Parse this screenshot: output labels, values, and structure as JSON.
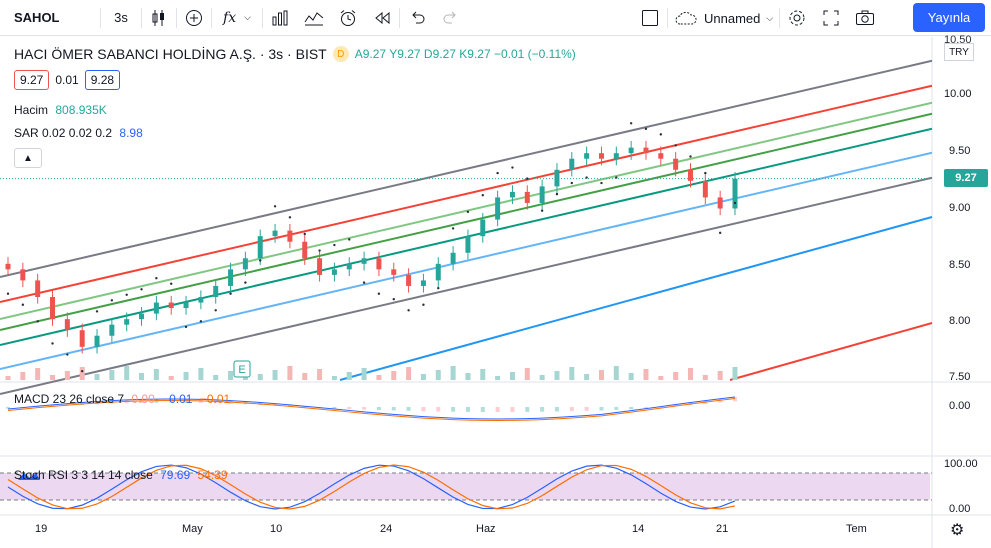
{
  "toolbar": {
    "symbol": "SAHOL",
    "interval": "3s",
    "fx_label": "fx",
    "layout_name": "Unnamed",
    "publish_label": "Yayınla"
  },
  "legend": {
    "name": "HACI ÖMER SABANCI HOLDİNG A.Ş. · 3s · BIST",
    "badge": "D",
    "ohlc": "A9.27 Y9.27 D9.27 K9.27 −0.01 (−0.11%)",
    "sell_price": "9.27",
    "spread": "0.01",
    "buy_price": "9.28"
  },
  "indicators": {
    "volume_label": "Hacim",
    "volume_value": "808.935K",
    "sar_label": "SAR 0.02 0.02 0.2",
    "sar_value": "8.98",
    "macd_label": "MACD 23 26 close 7",
    "macd_v1": "0.00",
    "macd_v2": "−0.01",
    "macd_v3": "−0.01",
    "stoch_label": "Stoch RSI 3 3 14 14 close",
    "stoch_k": "79.69",
    "stoch_d": "54.39"
  },
  "price_axis": {
    "currency": "TRY",
    "ticks": [
      "10.50",
      "10.00",
      "9.50",
      "9.00",
      "8.50",
      "8.00",
      "7.50"
    ],
    "current": "9.27",
    "macd_tick": "0.00",
    "stoch_ticks": [
      "100.00",
      "0.00"
    ]
  },
  "time_axis": {
    "ticks": [
      "19",
      "May",
      "10",
      "24",
      "Haz",
      "14",
      "21",
      "Tem"
    ]
  },
  "colors": {
    "up": "#26a69a",
    "down": "#ef5350",
    "accent": "#2962ff",
    "channel_gray": "#787b86",
    "channel_red": "#f44336",
    "channel_lightgreen": "#81c784",
    "channel_green": "#43a047",
    "channel_teal": "#089981",
    "channel_lightblue": "#64b5f6",
    "channel_blue": "#2196f3",
    "stoch_band": "#e1bee7"
  },
  "chart_data": {
    "type": "candlestick",
    "symbol": "SAHOL",
    "exchange": "BIST",
    "ylim": [
      7.45,
      10.55
    ],
    "close_series": [
      8.45,
      8.35,
      8.2,
      8.0,
      7.9,
      7.75,
      7.85,
      7.95,
      8.0,
      8.05,
      8.15,
      8.1,
      8.15,
      8.2,
      8.3,
      8.45,
      8.55,
      8.75,
      8.8,
      8.7,
      8.55,
      8.4,
      8.45,
      8.5,
      8.55,
      8.45,
      8.4,
      8.3,
      8.35,
      8.5,
      8.6,
      8.75,
      8.9,
      9.1,
      9.15,
      9.05,
      9.2,
      9.35,
      9.45,
      9.5,
      9.45,
      9.5,
      9.55,
      9.5,
      9.45,
      9.35,
      9.25,
      9.1,
      9.0,
      9.27
    ],
    "last": 9.27
  }
}
